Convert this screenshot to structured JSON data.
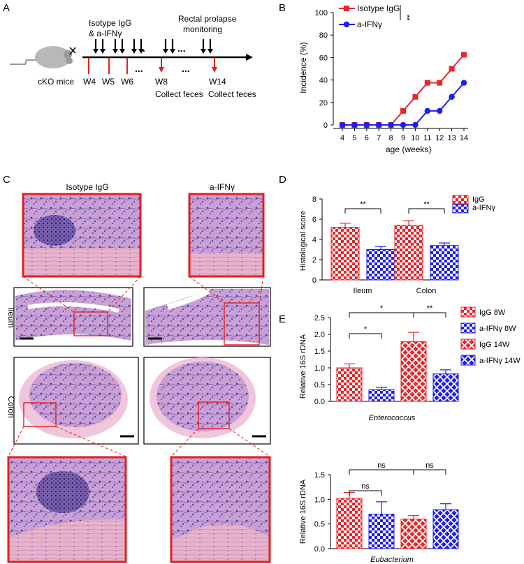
{
  "panels": {
    "A": "A",
    "B": "B",
    "C": "C",
    "D": "D",
    "E": "E"
  },
  "schema": {
    "treat_line1": "Isotype IgG",
    "treat_line2": "& a-IFNγ",
    "monitor_line1": "Rectal prolapse",
    "monitor_line2": "monitoring",
    "mouse_label": "cKO mice",
    "weeks": [
      "W4",
      "W5",
      "W6",
      "W8",
      "W14"
    ],
    "collect1": "Collect feces",
    "collect2": "Collect feces",
    "dots": "..",
    "dots3": "..."
  },
  "histology": {
    "col_isotype": "Isotype IgG",
    "col_aifn": "a-IFNγ",
    "row_ileum": "Ileum",
    "row_colon": "Colon"
  },
  "colors": {
    "igg": "#e8262b",
    "aifn": "#1d1df0",
    "tissue_pink": "#dca3c7",
    "tissue_purple": "#6a4fa3",
    "frame_red": "#e02020"
  },
  "chart_data": [
    {
      "id": "B",
      "type": "line",
      "title": "",
      "xlabel": "age (weeks)",
      "ylabel": "Incidence (%)",
      "x": [
        4,
        5,
        6,
        7,
        8,
        9,
        10,
        11,
        12,
        13,
        14
      ],
      "xlim": [
        4,
        14
      ],
      "ylim": [
        0,
        100
      ],
      "yticks": [
        0,
        20,
        40,
        60,
        80,
        100
      ],
      "series": [
        {
          "name": "Isotype IgG",
          "color": "#e8262b",
          "marker": "square",
          "values": [
            0,
            0,
            0,
            0,
            0,
            12.5,
            25,
            37.5,
            37.5,
            50,
            62.5
          ]
        },
        {
          "name": "a-IFNγ",
          "color": "#1d1df0",
          "marker": "circle",
          "values": [
            0,
            0,
            0,
            0,
            0,
            0,
            0,
            12.5,
            12.5,
            25,
            37.5
          ]
        }
      ],
      "significance": "**"
    },
    {
      "id": "D",
      "type": "bar",
      "xlabel": "",
      "ylabel": "Histological score",
      "categories": [
        "Ileum",
        "Colon"
      ],
      "ylim": [
        0,
        8
      ],
      "yticks": [
        0,
        2,
        4,
        6,
        8
      ],
      "series": [
        {
          "name": "IgG",
          "values": [
            5.2,
            5.4
          ],
          "errors": [
            0.4,
            0.45
          ]
        },
        {
          "name": "a-IFNγ",
          "values": [
            3.0,
            3.4
          ],
          "errors": [
            0.3,
            0.25
          ]
        }
      ],
      "significance": [
        "**",
        "**"
      ]
    },
    {
      "id": "E1",
      "type": "bar",
      "xlabel": "Enterococcus",
      "ylabel": "Relative 16S rDNA",
      "categories": [
        "IgG 8W",
        "a-IFNγ 8W",
        "IgG 14W",
        "a-IFNγ 14W"
      ],
      "values": [
        1.0,
        0.35,
        1.78,
        0.82
      ],
      "errors": [
        0.12,
        0.07,
        0.28,
        0.12
      ],
      "ylim": [
        0,
        2.5
      ],
      "yticks": [
        "0.0",
        "0.5",
        "1.0",
        "1.5",
        "2.0",
        "2.5"
      ],
      "significance": [
        {
          "from": 0,
          "to": 1,
          "label": "*"
        },
        {
          "from": 0,
          "to": 2,
          "label": "*"
        },
        {
          "from": 2,
          "to": 3,
          "label": "**"
        }
      ],
      "legend": [
        "IgG 8W",
        "a-IFNγ 8W",
        "IgG 14W",
        "a-IFNγ 14W"
      ]
    },
    {
      "id": "E2",
      "type": "bar",
      "xlabel": "Eubacterium",
      "ylabel": "Relative 16S rDNA",
      "categories": [
        "IgG 8W",
        "a-IFNγ 8W",
        "IgG 14W",
        "a-IFNγ 14W"
      ],
      "values": [
        1.02,
        0.7,
        0.6,
        0.79
      ],
      "errors": [
        0.12,
        0.25,
        0.07,
        0.12
      ],
      "ylim": [
        0,
        1.5
      ],
      "yticks": [
        "0.0",
        "0.5",
        "1.0",
        "1.5"
      ],
      "significance": [
        {
          "from": 0,
          "to": 1,
          "label": "ns"
        },
        {
          "from": 0,
          "to": 2,
          "label": "ns"
        },
        {
          "from": 2,
          "to": 3,
          "label": "ns"
        }
      ]
    }
  ]
}
